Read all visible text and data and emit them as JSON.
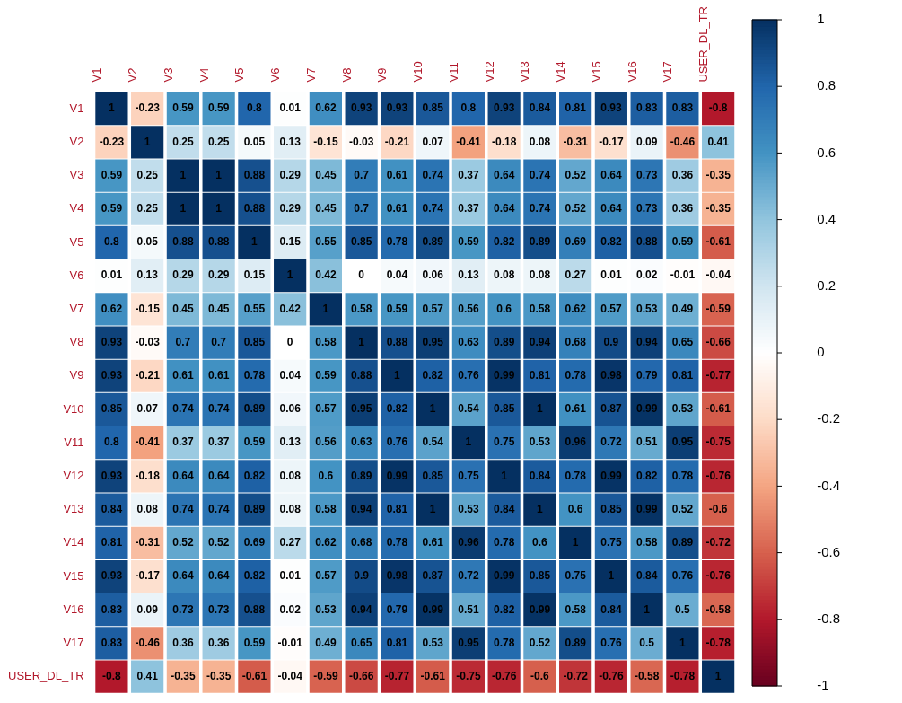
{
  "chart_data": {
    "type": "heatmap",
    "categories": [
      "V1",
      "V2",
      "V3",
      "V4",
      "V5",
      "V6",
      "V7",
      "V8",
      "V9",
      "V10",
      "V11",
      "V12",
      "V13",
      "V14",
      "V15",
      "V16",
      "V17",
      "USER_DL_TR"
    ],
    "y_categories": [
      "V1",
      "V2",
      "V3",
      "V4",
      "V5",
      "V6",
      "V7",
      "V8",
      "V9",
      "V10",
      "V11",
      "V12",
      "V13",
      "V14",
      "V15",
      "V16",
      "V17",
      "USER_DL_TR"
    ],
    "cells": [
      [
        1,
        -0.23,
        0.59,
        0.59,
        0.8,
        0.01,
        0.62,
        0.93,
        0.93,
        0.85,
        0.8,
        0.93,
        0.84,
        0.81,
        0.93,
        0.83,
        0.83,
        -0.8
      ],
      [
        -0.23,
        1,
        0.25,
        0.25,
        0.05,
        0.13,
        -0.15,
        -0.03,
        -0.21,
        0.07,
        -0.41,
        -0.18,
        0.08,
        -0.31,
        -0.17,
        0.09,
        -0.46,
        0.41
      ],
      [
        0.59,
        0.25,
        1,
        1,
        0.88,
        0.29,
        0.45,
        0.7,
        0.61,
        0.74,
        0.37,
        0.64,
        0.74,
        0.52,
        0.64,
        0.73,
        0.36,
        -0.35
      ],
      [
        0.59,
        0.25,
        1,
        1,
        0.88,
        0.29,
        0.45,
        0.7,
        0.61,
        0.74,
        0.37,
        0.64,
        0.74,
        0.52,
        0.64,
        0.73,
        0.36,
        -0.35
      ],
      [
        0.8,
        0.05,
        0.88,
        0.88,
        1,
        0.15,
        0.55,
        0.85,
        0.78,
        0.89,
        0.59,
        0.82,
        0.89,
        0.69,
        0.82,
        0.88,
        0.59,
        -0.61
      ],
      [
        0.01,
        0.13,
        0.29,
        0.29,
        0.15,
        1,
        0.42,
        0,
        0.04,
        0.06,
        0.13,
        0.08,
        0.08,
        0.27,
        0.01,
        0.02,
        -0.01,
        -0.04
      ],
      [
        0.62,
        -0.15,
        0.45,
        0.45,
        0.55,
        0.42,
        1,
        0.58,
        0.59,
        0.57,
        0.56,
        0.6,
        0.58,
        0.62,
        0.57,
        0.53,
        0.49,
        -0.59
      ],
      [
        0.93,
        -0.03,
        0.7,
        0.7,
        0.85,
        0,
        0.58,
        1,
        0.88,
        0.95,
        0.63,
        0.89,
        0.94,
        0.68,
        0.9,
        0.94,
        0.65,
        -0.66
      ],
      [
        0.93,
        -0.21,
        0.61,
        0.61,
        0.78,
        0.04,
        0.59,
        0.88,
        1,
        0.82,
        0.76,
        0.99,
        0.81,
        0.78,
        0.98,
        0.79,
        0.81,
        -0.77
      ],
      [
        0.85,
        0.07,
        0.74,
        0.74,
        0.89,
        0.06,
        0.57,
        0.95,
        0.82,
        1,
        0.54,
        0.85,
        1,
        0.61,
        0.87,
        0.99,
        0.53,
        -0.61
      ],
      [
        0.8,
        -0.41,
        0.37,
        0.37,
        0.59,
        0.13,
        0.56,
        0.63,
        0.76,
        0.54,
        1,
        0.75,
        0.53,
        0.96,
        0.72,
        0.51,
        0.95,
        -0.75
      ],
      [
        0.93,
        -0.18,
        0.64,
        0.64,
        0.82,
        0.08,
        0.6,
        0.89,
        0.99,
        0.85,
        0.75,
        1,
        0.84,
        0.78,
        0.99,
        0.82,
        0.78,
        -0.76
      ],
      [
        0.84,
        0.08,
        0.74,
        0.74,
        0.89,
        0.08,
        0.58,
        0.94,
        0.81,
        1,
        0.53,
        0.84,
        1,
        0.6,
        0.85,
        0.99,
        0.52,
        -0.6
      ],
      [
        0.81,
        -0.31,
        0.52,
        0.52,
        0.69,
        0.27,
        0.62,
        0.68,
        0.78,
        0.61,
        0.96,
        0.78,
        0.6,
        1,
        0.75,
        0.58,
        0.89,
        -0.72
      ],
      [
        0.93,
        -0.17,
        0.64,
        0.64,
        0.82,
        0.01,
        0.57,
        0.9,
        0.98,
        0.87,
        0.72,
        0.99,
        0.85,
        0.75,
        1,
        0.84,
        0.76,
        -0.76
      ],
      [
        0.83,
        0.09,
        0.73,
        0.73,
        0.88,
        0.02,
        0.53,
        0.94,
        0.79,
        0.99,
        0.51,
        0.82,
        0.99,
        0.58,
        0.84,
        1,
        0.5,
        -0.58
      ],
      [
        0.83,
        -0.46,
        0.36,
        0.36,
        0.59,
        -0.01,
        0.49,
        0.65,
        0.81,
        0.53,
        0.95,
        0.78,
        0.52,
        0.89,
        0.76,
        0.5,
        1,
        -0.78
      ],
      [
        -0.8,
        0.41,
        -0.35,
        -0.35,
        -0.61,
        -0.04,
        -0.59,
        -0.66,
        -0.77,
        -0.61,
        -0.75,
        -0.76,
        -0.6,
        -0.72,
        -0.76,
        -0.58,
        -0.78,
        1
      ]
    ],
    "clim": [
      -1,
      1
    ],
    "cticks": [
      -1,
      -0.8,
      -0.6,
      -0.4,
      -0.2,
      0,
      0.2,
      0.4,
      0.6,
      0.8,
      1
    ],
    "data_labels": true
  }
}
